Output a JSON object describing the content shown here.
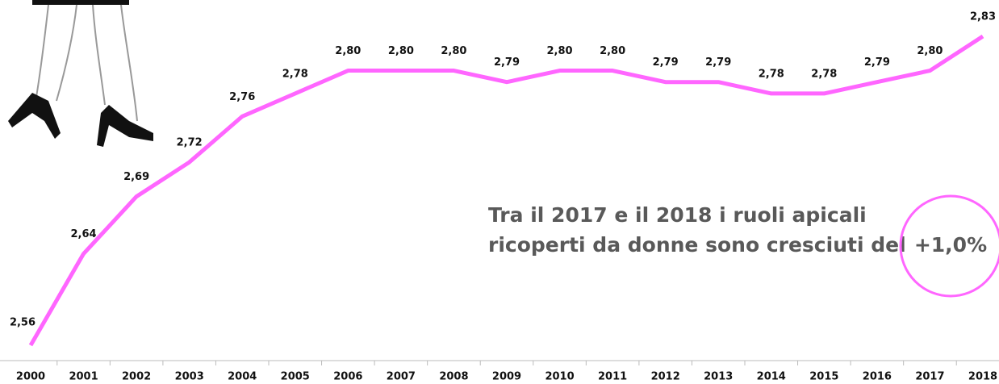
{
  "chart_data": {
    "type": "line",
    "categories": [
      "2000",
      "2001",
      "2002",
      "2003",
      "2004",
      "2005",
      "2006",
      "2007",
      "2008",
      "2009",
      "2010",
      "2011",
      "2012",
      "2013",
      "2014",
      "2015",
      "2016",
      "2017",
      "2018"
    ],
    "series": [
      {
        "color": "#ff66ff",
        "values": [
          2.56,
          2.64,
          2.69,
          2.72,
          2.76,
          2.78,
          2.8,
          2.8,
          2.8,
          2.79,
          2.8,
          2.8,
          2.79,
          2.79,
          2.78,
          2.78,
          2.79,
          2.8,
          2.83
        ],
        "value_labels": [
          "2,56",
          "2,64",
          "2,69",
          "2,72",
          "2,76",
          "2,78",
          "2,80",
          "2,80",
          "2,80",
          "2,79",
          "2,80",
          "2,80",
          "2,79",
          "2,79",
          "2,78",
          "2,78",
          "2,79",
          "2,80",
          "2,83"
        ]
      }
    ],
    "annotations": [
      "Tra il 2017 e il 2018 i ruoli apicali",
      "ricoperti da donne sono cresciuti del",
      "+1,0%"
    ]
  }
}
